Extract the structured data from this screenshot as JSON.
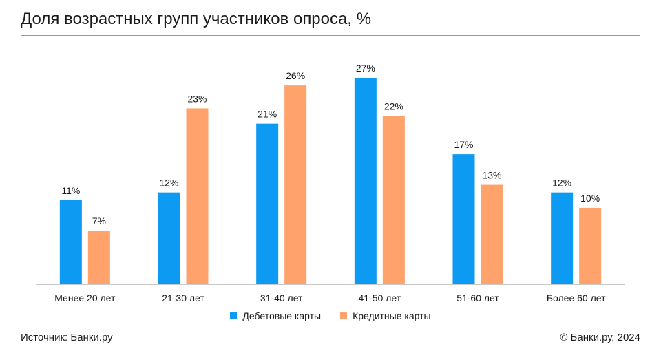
{
  "header": {
    "title": "Доля возрастных групп участников опроса, %"
  },
  "footer": {
    "source": "Источник: Банки.ру",
    "copyright": "© Банки.ру, 2024"
  },
  "colors": {
    "debit": "#0d9af2",
    "credit": "#ffa26b",
    "axis": "#c8c8c8"
  },
  "chart_data": {
    "type": "bar",
    "title": "Доля возрастных групп участников опроса, %",
    "xlabel": "",
    "ylabel": "",
    "ylim": [
      0,
      27
    ],
    "categories": [
      "Менее 20 лет",
      "21-30 лет",
      "31-40 лет",
      "41-50 лет",
      "51-60 лет",
      "Более 60 лет"
    ],
    "series": [
      {
        "name": "Дебетовые карты",
        "values": [
          11,
          12,
          21,
          27,
          17,
          12
        ],
        "labels": [
          "11%",
          "12%",
          "21%",
          "27%",
          "17%",
          "12%"
        ]
      },
      {
        "name": "Кредитные карты",
        "values": [
          7,
          23,
          26,
          22,
          13,
          10
        ],
        "labels": [
          "7%",
          "23%",
          "26%",
          "22%",
          "13%",
          "10%"
        ]
      }
    ],
    "grid": false,
    "legend_position": "bottom-center"
  }
}
